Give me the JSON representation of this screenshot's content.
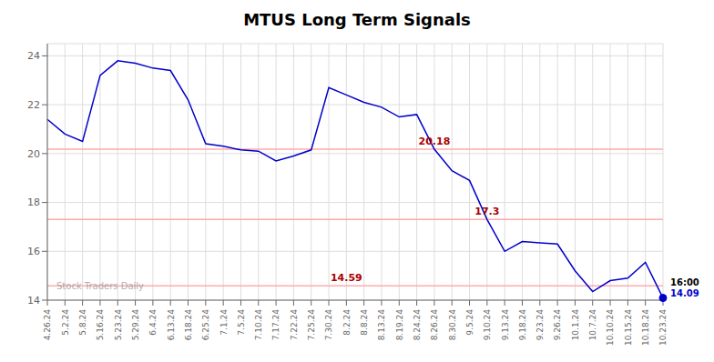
{
  "chart_data": {
    "type": "line",
    "title": "MTUS Long Term Signals",
    "categories": [
      "4.26.24",
      "5.2.24",
      "5.8.24",
      "5.16.24",
      "5.23.24",
      "5.29.24",
      "6.4.24",
      "6.13.24",
      "6.18.24",
      "6.25.24",
      "7.1.24",
      "7.5.24",
      "7.10.24",
      "7.17.24",
      "7.22.24",
      "7.25.24",
      "7.30.24",
      "8.2.24",
      "8.8.24",
      "8.13.24",
      "8.19.24",
      "8.24.24",
      "8.26.24",
      "8.30.24",
      "9.5.24",
      "9.10.24",
      "9.13.24",
      "9.18.24",
      "9.23.24",
      "9.26.24",
      "10.1.24",
      "10.7.24",
      "10.10.24",
      "10.15.24",
      "10.18.24",
      "10.23.24"
    ],
    "values": [
      21.4,
      20.8,
      20.5,
      23.2,
      23.8,
      23.7,
      23.5,
      23.4,
      22.2,
      20.4,
      20.3,
      20.15,
      20.1,
      19.7,
      19.9,
      20.15,
      22.7,
      22.4,
      22.1,
      21.9,
      21.5,
      21.6,
      20.18,
      19.3,
      18.9,
      17.3,
      16.0,
      16.4,
      16.35,
      16.3,
      15.2,
      14.35,
      14.8,
      14.9,
      15.55,
      14.09
    ],
    "color": "#0000cc",
    "ylim": [
      14,
      24.5
    ],
    "yticks": [
      14,
      16,
      18,
      20,
      22,
      24
    ],
    "grid": true,
    "hlines": [
      {
        "value": 20.18,
        "label": "20.18",
        "x": "8.26.24",
        "color": "#ffaaaa",
        "label_color": "#aa0000"
      },
      {
        "value": 17.3,
        "label": "17.3",
        "x": "9.10.24",
        "color": "#ffaaaa",
        "label_color": "#aa0000"
      },
      {
        "value": 14.59,
        "label": "14.59",
        "x": "8.2.24",
        "color": "#ffaaaa",
        "label_color": "#aa0000"
      }
    ],
    "annotations": [
      {
        "text": "16:00",
        "x": "10.23.24",
        "y": 14.09
      },
      {
        "text": "14.09",
        "x": "10.23.24",
        "y": 14.09,
        "color": "#0000cc"
      }
    ],
    "watermark": "Stock Traders Daily"
  }
}
